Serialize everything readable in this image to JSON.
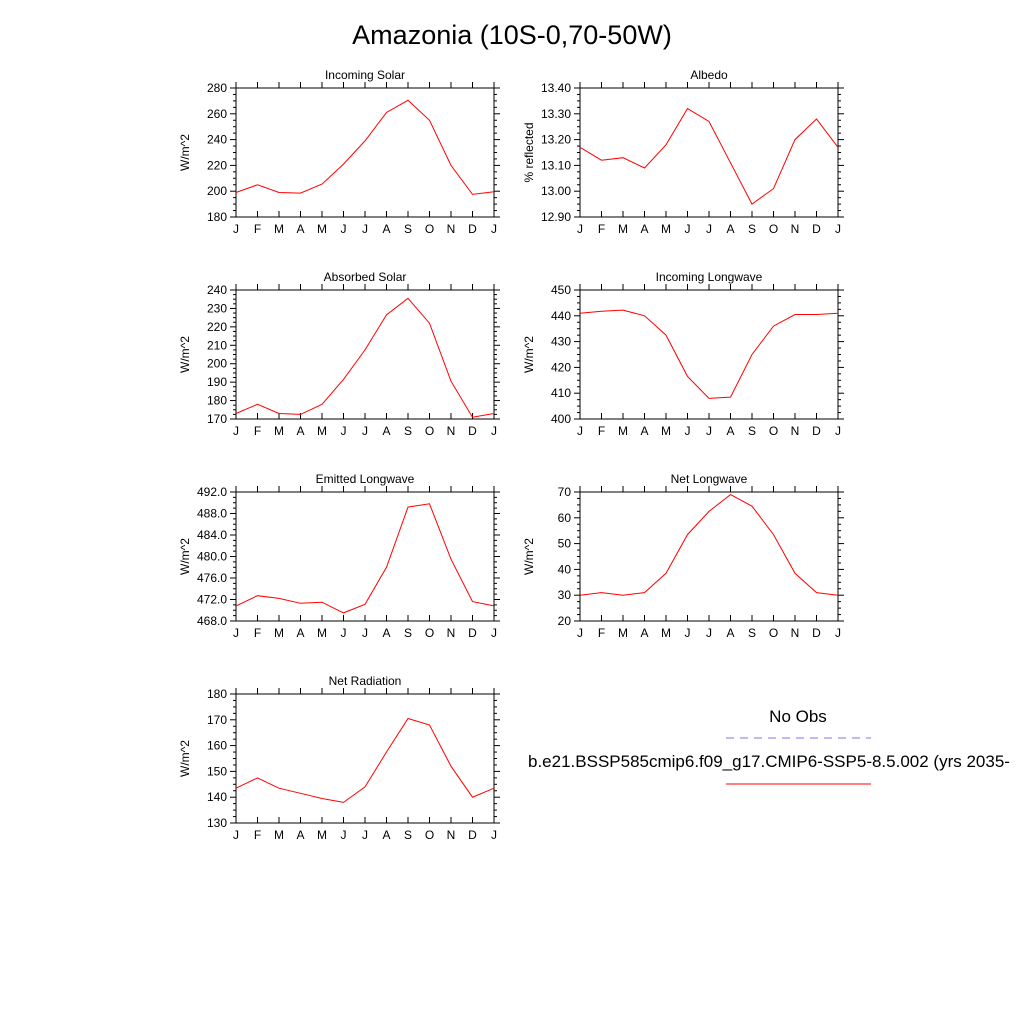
{
  "page": {
    "title": "Amazonia (10S-0,70-50W)"
  },
  "legend": {
    "obs_label": "No Obs",
    "obs_color": "#7777ee",
    "model_label": "b.e21.BSSP585cmip6.f09_g17.CMIP6-SSP5-8.5.002 (yrs 2035-",
    "model_color": "#ff0000"
  },
  "chart_data": [
    {
      "type": "line",
      "title": "Incoming Solar",
      "ylabel": "W/m^2",
      "xlabel": "",
      "categories": [
        "J",
        "F",
        "M",
        "A",
        "M",
        "J",
        "J",
        "A",
        "S",
        "O",
        "N",
        "D",
        "J"
      ],
      "ylim": [
        180,
        280
      ],
      "yticks": [
        "180",
        "200",
        "220",
        "240",
        "260",
        "280"
      ],
      "grid": false,
      "series": [
        {
          "values": [
            199,
            205,
            199,
            198.5,
            205.5,
            221,
            239,
            261,
            270.5,
            255,
            220,
            197.5,
            199.5
          ],
          "color": "#ff0000"
        }
      ]
    },
    {
      "type": "line",
      "title": "Albedo",
      "ylabel": "% reflected",
      "xlabel": "",
      "categories": [
        "J",
        "F",
        "M",
        "A",
        "M",
        "J",
        "J",
        "A",
        "S",
        "O",
        "N",
        "D",
        "J"
      ],
      "ylim": [
        12.9,
        13.4
      ],
      "yticks": [
        "12.90",
        "13.00",
        "13.10",
        "13.20",
        "13.30",
        "13.40"
      ],
      "grid": false,
      "series": [
        {
          "values": [
            13.17,
            13.12,
            13.13,
            13.09,
            13.18,
            13.32,
            13.27,
            13.11,
            12.95,
            13.01,
            13.2,
            13.28,
            13.17
          ],
          "color": "#ff0000"
        }
      ]
    },
    {
      "type": "line",
      "title": "Absorbed Solar",
      "ylabel": "W/m^2",
      "xlabel": "",
      "categories": [
        "J",
        "F",
        "M",
        "A",
        "M",
        "J",
        "J",
        "A",
        "S",
        "O",
        "N",
        "D",
        "J"
      ],
      "ylim": [
        170,
        240
      ],
      "yticks": [
        "170",
        "180",
        "190",
        "200",
        "210",
        "220",
        "230",
        "240"
      ],
      "grid": false,
      "series": [
        {
          "values": [
            173,
            178,
            173,
            172.5,
            178,
            191.5,
            207.5,
            226.5,
            235.5,
            222,
            190.5,
            171,
            173
          ],
          "color": "#ff0000"
        }
      ]
    },
    {
      "type": "line",
      "title": "Incoming Longwave",
      "ylabel": "W/m^2",
      "xlabel": "",
      "categories": [
        "J",
        "F",
        "M",
        "A",
        "M",
        "J",
        "J",
        "A",
        "S",
        "O",
        "N",
        "D",
        "J"
      ],
      "ylim": [
        400,
        450
      ],
      "yticks": [
        "400",
        "410",
        "420",
        "430",
        "440",
        "450"
      ],
      "grid": false,
      "series": [
        {
          "values": [
            441,
            441.8,
            442.2,
            440,
            432.5,
            416.5,
            408,
            408.5,
            425,
            436,
            440.5,
            440.5,
            441
          ],
          "color": "#ff0000"
        }
      ]
    },
    {
      "type": "line",
      "title": "Emitted Longwave",
      "ylabel": "W/m^2",
      "xlabel": "",
      "categories": [
        "J",
        "F",
        "M",
        "A",
        "M",
        "J",
        "J",
        "A",
        "S",
        "O",
        "N",
        "D",
        "J"
      ],
      "ylim": [
        468,
        492
      ],
      "yticks": [
        "468.0",
        "472.0",
        "476.0",
        "480.0",
        "484.0",
        "488.0",
        "492.0"
      ],
      "grid": false,
      "series": [
        {
          "values": [
            470.8,
            472.7,
            472.2,
            471.3,
            471.5,
            469.5,
            471.1,
            478,
            489.2,
            489.8,
            479.5,
            471.6,
            470.8
          ],
          "color": "#ff0000"
        }
      ]
    },
    {
      "type": "line",
      "title": "Net Longwave",
      "ylabel": "W/m^2",
      "xlabel": "",
      "categories": [
        "J",
        "F",
        "M",
        "A",
        "M",
        "J",
        "J",
        "A",
        "S",
        "O",
        "N",
        "D",
        "J"
      ],
      "ylim": [
        20,
        70
      ],
      "yticks": [
        "20",
        "30",
        "40",
        "50",
        "60",
        "70"
      ],
      "grid": false,
      "series": [
        {
          "values": [
            30,
            31,
            30,
            31,
            38.5,
            53.5,
            62.5,
            69,
            64.5,
            53.5,
            38.5,
            31,
            30
          ],
          "color": "#ff0000"
        }
      ]
    },
    {
      "type": "line",
      "title": "Net Radiation",
      "ylabel": "W/m^2",
      "xlabel": "",
      "categories": [
        "J",
        "F",
        "M",
        "A",
        "M",
        "J",
        "J",
        "A",
        "S",
        "O",
        "N",
        "D",
        "J"
      ],
      "ylim": [
        130,
        180
      ],
      "yticks": [
        "130",
        "140",
        "150",
        "160",
        "170",
        "180"
      ],
      "grid": false,
      "series": [
        {
          "values": [
            143.5,
            147.5,
            143.5,
            141.5,
            139.5,
            138,
            144,
            157.5,
            170.5,
            168,
            152,
            140,
            143.5
          ],
          "color": "#ff0000"
        }
      ]
    }
  ]
}
